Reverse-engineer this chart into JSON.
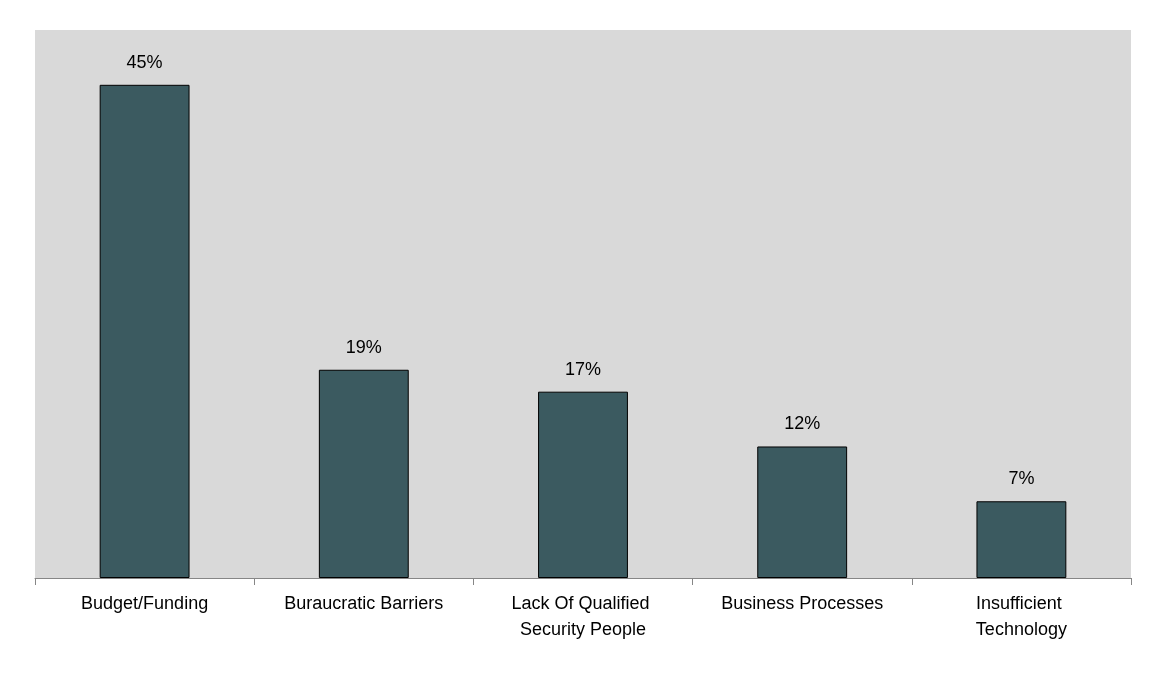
{
  "chart_data": {
    "type": "bar",
    "categories": [
      "Budget/Funding",
      "Buraucratic Barriers",
      "Lack Of Qualified Security People",
      "Business Processes",
      "Insufficient Technology"
    ],
    "values": [
      45,
      19,
      17,
      12,
      7
    ],
    "value_labels": [
      "45%",
      "19%",
      "17%",
      "12%",
      "7%"
    ],
    "color": "#3b5a60"
  }
}
